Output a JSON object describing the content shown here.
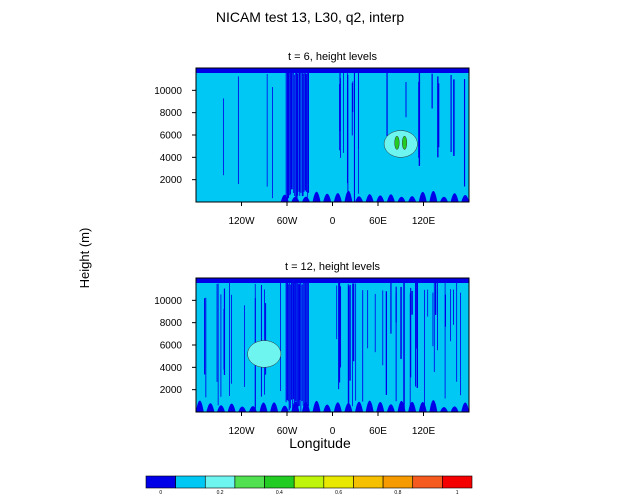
{
  "figure": {
    "title": "NICAM test 13, L30, q2, interp",
    "ylabel": "Height (m)",
    "xlabel": "Longitude"
  },
  "chart_data": [
    {
      "type": "heatmap",
      "title": "t = 6, height levels",
      "x_ticks": [
        "120W",
        "60W",
        "0",
        "60E",
        "120E"
      ],
      "x_tick_values": [
        -120,
        -60,
        0,
        60,
        120
      ],
      "y_ticks": [
        "2000",
        "4000",
        "6000",
        "8000",
        "10000"
      ],
      "y_tick_values": [
        2000,
        4000,
        6000,
        8000,
        10000
      ],
      "xlim": [
        -180,
        180
      ],
      "ylim": [
        0,
        12000
      ],
      "background_level": 0.1,
      "features": [
        {
          "kind": "blob",
          "level": 0.2,
          "lon": 90,
          "z": 5200,
          "rx": 22,
          "rz": 1200
        },
        {
          "kind": "blob",
          "level": 0.4,
          "lon": 85,
          "z": 5300,
          "rx": 3,
          "rz": 600
        },
        {
          "kind": "blob",
          "level": 0.4,
          "lon": 95,
          "z": 5300,
          "rx": 3,
          "rz": 600
        }
      ]
    },
    {
      "type": "heatmap",
      "title": "t = 12, height levels",
      "x_ticks": [
        "120W",
        "60W",
        "0",
        "60E",
        "120E"
      ],
      "x_tick_values": [
        -120,
        -60,
        0,
        60,
        120
      ],
      "y_ticks": [
        "2000",
        "4000",
        "6000",
        "8000",
        "10000"
      ],
      "y_tick_values": [
        2000,
        4000,
        6000,
        8000,
        10000
      ],
      "xlim": [
        -180,
        180
      ],
      "ylim": [
        0,
        12000
      ],
      "background_level": 0.1,
      "features": [
        {
          "kind": "blob",
          "level": 0.2,
          "lon": -90,
          "z": 5200,
          "rx": 22,
          "rz": 1200
        }
      ]
    }
  ],
  "colorbar": {
    "levels": [
      0,
      0.1,
      0.2,
      0.3,
      0.4,
      0.5,
      0.6,
      0.7,
      0.8,
      0.9,
      1.0
    ],
    "labels": [
      "0",
      "0.2",
      "0.4",
      "0.6",
      "0.8",
      "1"
    ],
    "label_values": [
      0,
      0.2,
      0.4,
      0.6,
      0.8,
      1.0
    ],
    "colors": [
      "#0000e8",
      "#00c8f5",
      "#6ef5f0",
      "#50e050",
      "#22cc22",
      "#bff50a",
      "#e8e800",
      "#f5c000",
      "#f59a00",
      "#f55a1e",
      "#f50000"
    ]
  }
}
